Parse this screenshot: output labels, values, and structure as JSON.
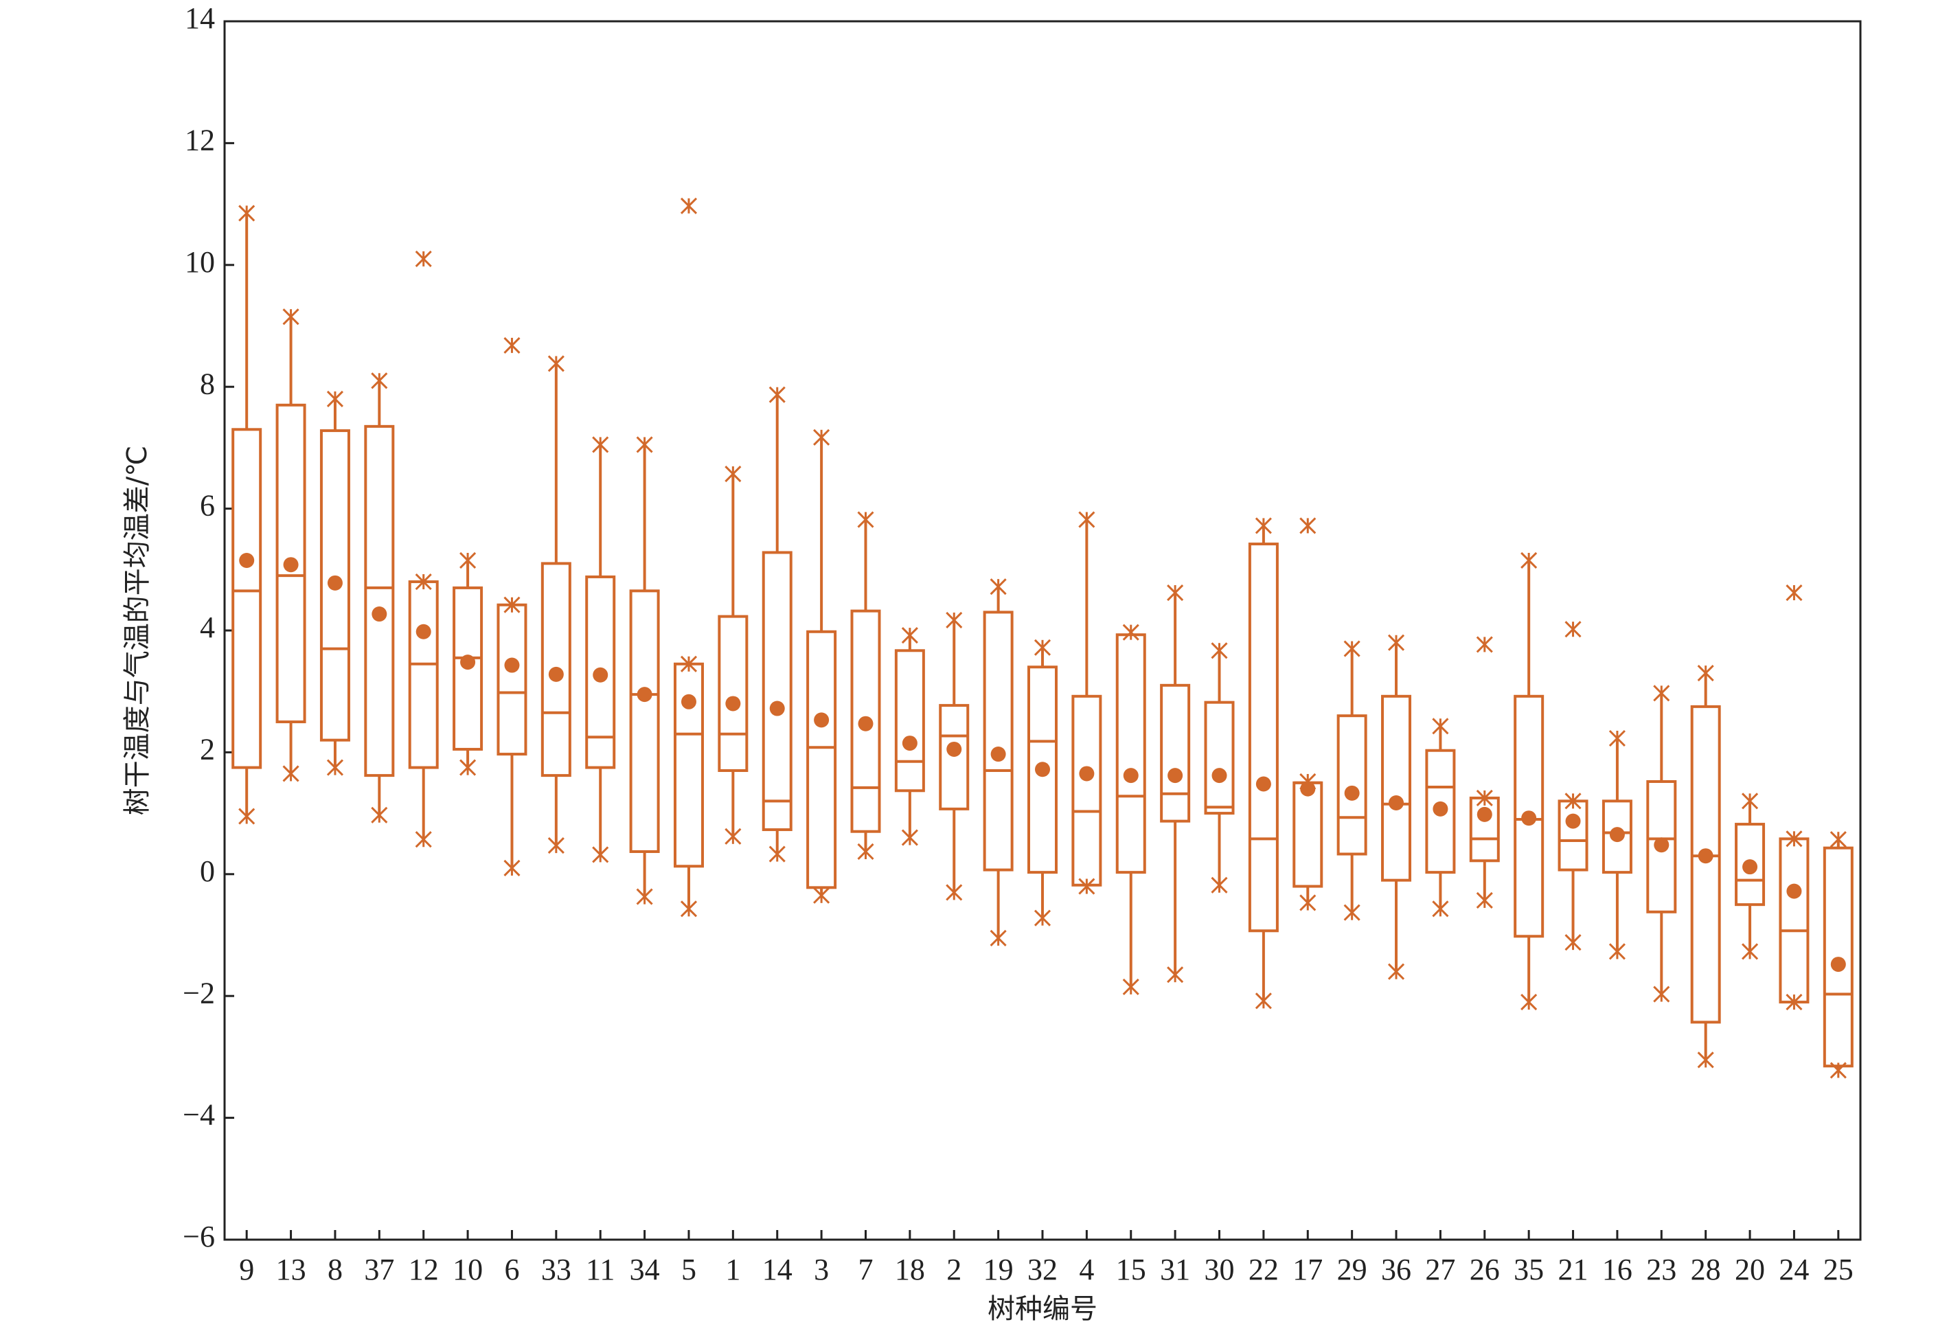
{
  "chart_data": {
    "type": "box",
    "x_label": "树种编号",
    "y_label": "树干温度与气温的平均温差/℃",
    "color": "#d2692b",
    "categories": [
      "9",
      "13",
      "8",
      "37",
      "12",
      "10",
      "6",
      "33",
      "11",
      "34",
      "5",
      "1",
      "14",
      "3",
      "7",
      "18",
      "2",
      "19",
      "32",
      "4",
      "15",
      "31",
      "30",
      "22",
      "17",
      "29",
      "36",
      "27",
      "26",
      "35",
      "21",
      "16",
      "23",
      "28",
      "20",
      "24",
      "25"
    ],
    "whislo": [
      0.95,
      1.65,
      1.75,
      0.97,
      0.57,
      1.75,
      0.1,
      0.47,
      0.32,
      -0.37,
      -0.57,
      0.62,
      0.33,
      -0.35,
      0.37,
      0.6,
      -0.3,
      -1.05,
      -0.72,
      -0.2,
      -1.85,
      -1.65,
      -0.18,
      -2.08,
      -0.47,
      -0.63,
      -1.6,
      -0.57,
      -0.43,
      -2.1,
      -1.12,
      -1.27,
      -1.97,
      -3.05,
      -1.27,
      -2.1,
      -3.22
    ],
    "q1": [
      1.75,
      2.5,
      2.2,
      1.62,
      1.75,
      2.05,
      1.97,
      1.62,
      1.75,
      0.37,
      0.13,
      1.7,
      0.73,
      -0.22,
      0.7,
      1.37,
      1.07,
      0.07,
      0.03,
      -0.18,
      0.03,
      0.87,
      1.0,
      -0.93,
      -0.2,
      0.33,
      -0.1,
      0.03,
      0.22,
      -1.02,
      0.07,
      0.03,
      -0.62,
      -2.43,
      -0.5,
      -2.1,
      -3.15
    ],
    "med": [
      4.65,
      4.9,
      3.7,
      4.7,
      3.45,
      3.55,
      2.98,
      2.65,
      2.25,
      2.95,
      2.3,
      2.3,
      1.2,
      2.08,
      1.42,
      1.85,
      2.27,
      1.7,
      2.18,
      1.03,
      1.28,
      1.32,
      1.1,
      0.58,
      1.5,
      0.93,
      1.15,
      1.43,
      0.58,
      0.9,
      0.55,
      0.68,
      0.58,
      0.3,
      -0.1,
      -0.93,
      -1.97
    ],
    "q3": [
      7.3,
      7.7,
      7.28,
      7.35,
      4.8,
      4.7,
      4.42,
      5.1,
      4.88,
      4.65,
      3.45,
      4.23,
      5.28,
      3.98,
      4.32,
      3.67,
      2.77,
      4.3,
      3.4,
      2.92,
      3.93,
      3.1,
      2.82,
      5.42,
      1.5,
      2.6,
      2.92,
      2.03,
      1.25,
      2.92,
      1.2,
      1.2,
      1.52,
      2.75,
      0.82,
      0.58,
      0.43
    ],
    "whishi": [
      10.85,
      9.15,
      7.8,
      8.1,
      4.8,
      5.15,
      4.42,
      8.38,
      7.05,
      7.05,
      3.45,
      6.57,
      7.87,
      7.17,
      5.82,
      3.92,
      4.17,
      4.72,
      3.72,
      5.82,
      3.97,
      4.62,
      3.67,
      5.72,
      1.52,
      3.7,
      3.8,
      2.43,
      1.25,
      5.15,
      1.2,
      2.23,
      2.97,
      3.3,
      1.2,
      0.58,
      0.57
    ],
    "mean": [
      5.15,
      5.08,
      4.78,
      4.27,
      3.98,
      3.48,
      3.43,
      3.28,
      3.27,
      2.95,
      2.83,
      2.8,
      2.72,
      2.53,
      2.47,
      2.15,
      2.05,
      1.97,
      1.72,
      1.65,
      1.62,
      1.62,
      1.62,
      1.48,
      1.4,
      1.33,
      1.17,
      1.07,
      0.98,
      0.92,
      0.87,
      0.65,
      0.48,
      0.3,
      0.12,
      -0.28,
      -1.48
    ],
    "outliers": [
      [],
      [],
      [],
      [],
      [
        10.1
      ],
      [],
      [
        8.68
      ],
      [],
      [],
      [],
      [
        10.97
      ],
      [],
      [],
      [],
      [],
      [],
      [],
      [],
      [],
      [],
      [],
      [],
      [],
      [],
      [
        5.72
      ],
      [],
      [],
      [],
      [
        3.77
      ],
      [],
      [
        4.02
      ],
      [],
      [],
      [],
      [],
      [
        4.62
      ],
      []
    ],
    "ylim": [
      -6,
      14
    ],
    "yticks": [
      {
        "value": -6,
        "label": "−6"
      },
      {
        "value": -4,
        "label": "−4"
      },
      {
        "value": -2,
        "label": "−2"
      },
      0,
      2,
      4,
      6,
      8,
      10,
      12,
      14
    ]
  }
}
